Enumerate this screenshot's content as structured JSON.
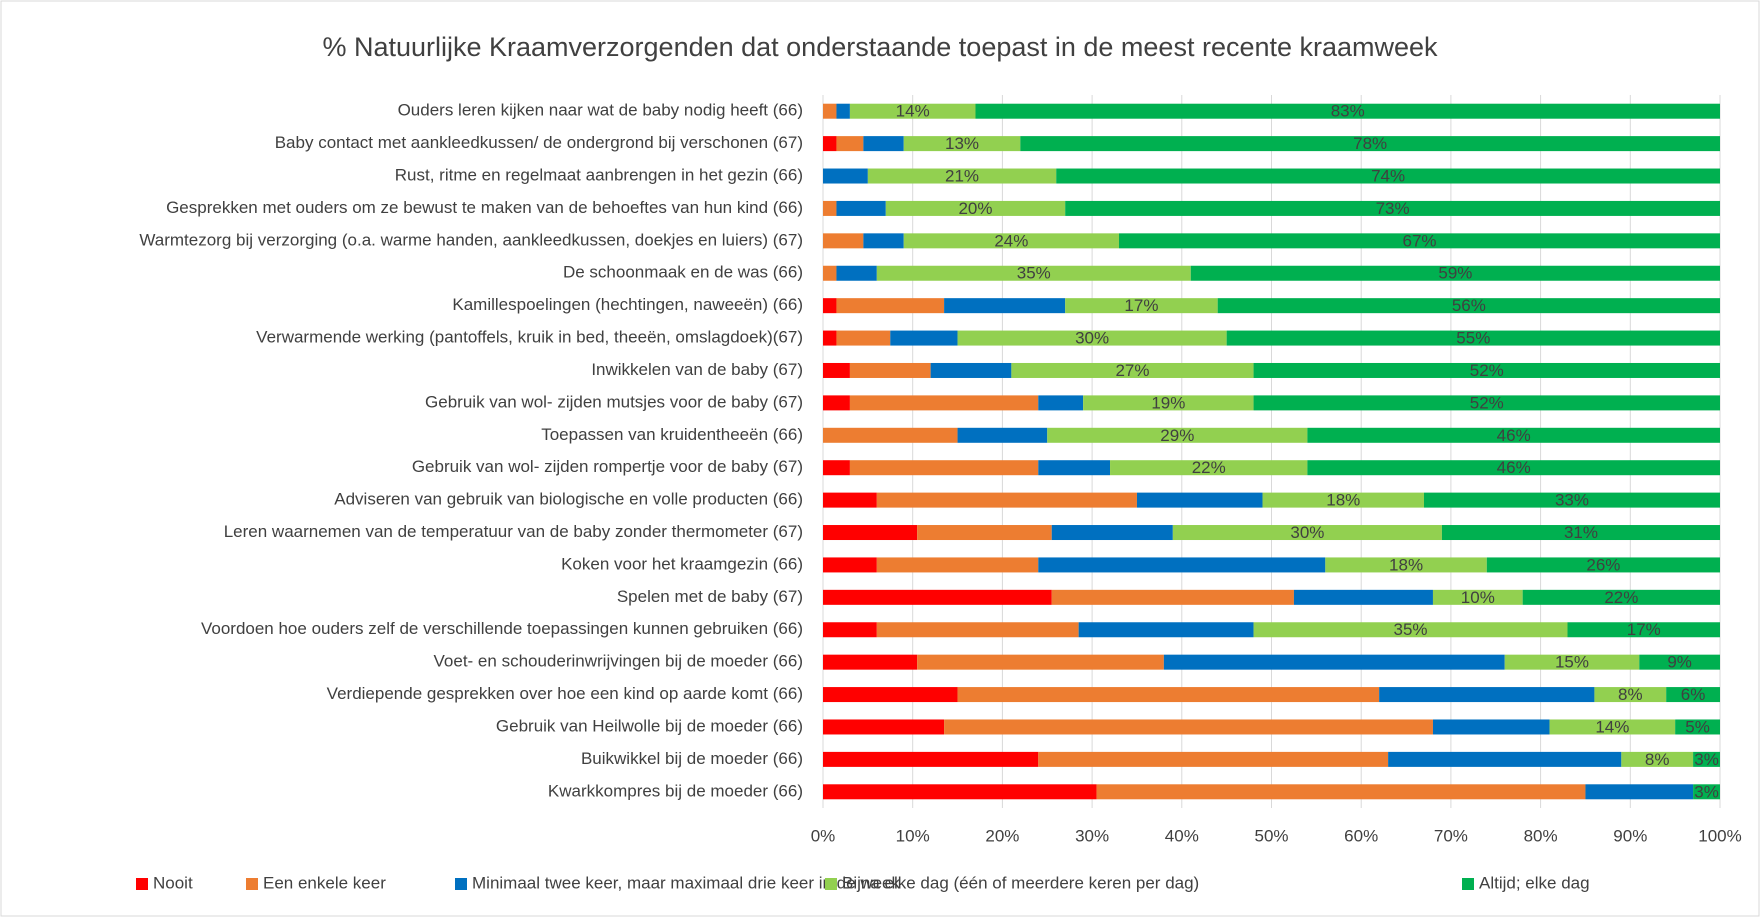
{
  "chart_data": {
    "type": "stacked_bar_horizontal",
    "title": "% Natuurlijke Kraamverzorgenden dat onderstaande toepast in de meest recente kraamweek",
    "categories": [
      "Ouders leren kijken naar wat de baby nodig heeft (66)",
      "Baby contact met aankleedkussen/ de ondergrond bij verschonen (67)",
      "Rust, ritme en regelmaat aanbrengen in het gezin (66)",
      "Gesprekken met ouders om ze bewust te maken van de behoeftes van hun kind (66)",
      "Warmtezorg bij verzorging (o.a. warme handen, aankleedkussen, doekjes en luiers) (67)",
      "De schoonmaak en de was (66)",
      "Kamillespoelingen (hechtingen, naweeën) (66)",
      "Verwarmende werking (pantoffels, kruik in bed, theeën, omslagdoek)(67)",
      "Inwikkelen van de baby (67)",
      "Gebruik van wol- zijden mutsjes voor de baby (67)",
      "Toepassen van kruidentheeën (66)",
      "Gebruik van wol- zijden rompertje voor de baby (67)",
      "Adviseren van gebruik van biologische en volle producten (66)",
      "Leren waarnemen van de temperatuur van de baby zonder thermometer (67)",
      "Koken voor het kraamgezin (66)",
      "Spelen met de baby (67)",
      "Voordoen hoe ouders zelf de verschillende toepassingen kunnen gebruiken (66)",
      "Voet- en schouderinwrijvingen bij de moeder (66)",
      "Verdiepende gesprekken over hoe een kind op aarde komt (66)",
      "Gebruik van Heilwolle bij de moeder (66)",
      "Buikwikkel bij de moeder (66)",
      "Kwarkkompres bij de moeder (66)"
    ],
    "series": [
      {
        "name": "Nooit",
        "color": "#ff0000",
        "values": [
          0,
          1.5,
          0,
          0,
          0,
          0,
          1.5,
          1.5,
          3,
          3,
          0,
          3,
          6,
          10.5,
          6,
          25.5,
          6,
          10.5,
          15,
          13.5,
          24,
          30.5
        ]
      },
      {
        "name": "Een enkele keer",
        "color": "#ed7d31",
        "values": [
          1.5,
          3,
          0,
          1.5,
          4.5,
          1.5,
          12,
          6,
          9,
          21,
          15,
          21,
          29,
          15,
          18,
          27,
          22.5,
          27.5,
          47,
          54.5,
          39,
          54.5
        ]
      },
      {
        "name": "Minimaal twee keer, maar maximaal drie keer in de week",
        "color": "#0070c0",
        "values": [
          1.5,
          4.5,
          5,
          5.5,
          4.5,
          4.5,
          13.5,
          7.5,
          9,
          5,
          10,
          8,
          14,
          13.5,
          32,
          15.5,
          19.5,
          38,
          24,
          13,
          26,
          12
        ]
      },
      {
        "name": "Bijna elke dag (één of meerdere keren per dag)",
        "color": "#92d050",
        "values": [
          14,
          13,
          21,
          20,
          24,
          35,
          17,
          30,
          27,
          19,
          29,
          22,
          18,
          30,
          18,
          10,
          35,
          15,
          8,
          14,
          8,
          0
        ],
        "value_labels": [
          "14%",
          "13%",
          "21%",
          "20%",
          "24%",
          "35%",
          "17%",
          "30%",
          "27%",
          "19%",
          "29%",
          "22%",
          "18%",
          "30%",
          "18%",
          "10%",
          "35%",
          "15%",
          "8%",
          "14%",
          "8%",
          null
        ]
      },
      {
        "name": "Altijd; elke dag",
        "color": "#00b050",
        "values": [
          83,
          78,
          74,
          73,
          67,
          59,
          56,
          55,
          52,
          52,
          46,
          46,
          33,
          31,
          26,
          22,
          17,
          9,
          6,
          5,
          3,
          3
        ],
        "value_labels": [
          "83%",
          "78%",
          "74%",
          "73%",
          "67%",
          "59%",
          "56%",
          "55%",
          "52%",
          "52%",
          "46%",
          "46%",
          "33%",
          "31%",
          "26%",
          "22%",
          "17%",
          "9%",
          "6%",
          "5%",
          "3%",
          "3%"
        ]
      }
    ],
    "xlim": [
      0,
      100
    ],
    "xticks": [
      {
        "value": 0,
        "label": "0%"
      },
      {
        "value": 10,
        "label": "10%"
      },
      {
        "value": 20,
        "label": "20%"
      },
      {
        "value": 30,
        "label": "30%"
      },
      {
        "value": 40,
        "label": "40%"
      },
      {
        "value": 50,
        "label": "50%"
      },
      {
        "value": 60,
        "label": "60%"
      },
      {
        "value": 70,
        "label": "70%"
      },
      {
        "value": 80,
        "label": "80%"
      },
      {
        "value": 90,
        "label": "90%"
      },
      {
        "value": 100,
        "label": "100%"
      }
    ],
    "grid": true,
    "legend": "bottom"
  }
}
